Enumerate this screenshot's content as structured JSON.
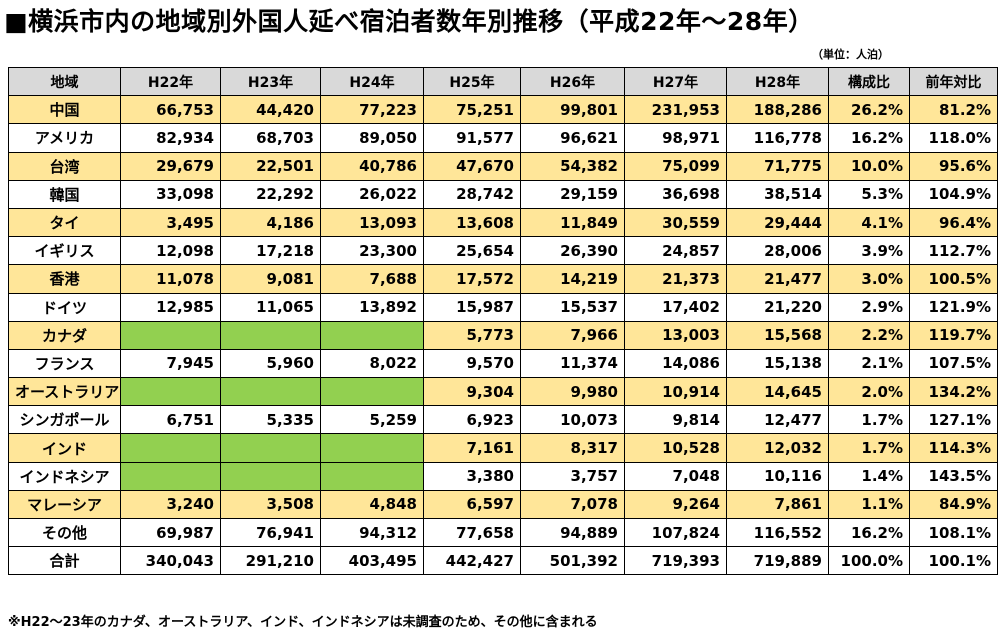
{
  "title": "■横浜市内の地域別外国人延べ宿泊者数年別推移（平成22年～28年）",
  "unit": "（単位：人泊）",
  "headers": [
    "地域",
    "H22年",
    "H23年",
    "H24年",
    "H25年",
    "H26年",
    "H27年",
    "H28年",
    "構成比",
    "前年対比"
  ],
  "rows": [
    {
      "name": "中国",
      "hl": true,
      "vals": [
        "66,753",
        "44,420",
        "77,223",
        "75,251",
        "99,801",
        "231,953",
        "188,286",
        "26.2%",
        "81.2%"
      ]
    },
    {
      "name": "アメリカ",
      "hl": false,
      "vals": [
        "82,934",
        "68,703",
        "89,050",
        "91,577",
        "96,621",
        "98,971",
        "116,778",
        "16.2%",
        "118.0%"
      ]
    },
    {
      "name": "台湾",
      "hl": true,
      "vals": [
        "29,679",
        "22,501",
        "40,786",
        "47,670",
        "54,382",
        "75,099",
        "71,775",
        "10.0%",
        "95.6%"
      ]
    },
    {
      "name": "韓国",
      "hl": false,
      "vals": [
        "33,098",
        "22,292",
        "26,022",
        "28,742",
        "29,159",
        "36,698",
        "38,514",
        "5.3%",
        "104.9%"
      ]
    },
    {
      "name": "タイ",
      "hl": true,
      "vals": [
        "3,495",
        "4,186",
        "13,093",
        "13,608",
        "11,849",
        "30,559",
        "29,444",
        "4.1%",
        "96.4%"
      ]
    },
    {
      "name": "イギリス",
      "hl": false,
      "vals": [
        "12,098",
        "17,218",
        "23,300",
        "25,654",
        "26,390",
        "24,857",
        "28,006",
        "3.9%",
        "112.7%"
      ]
    },
    {
      "name": "香港",
      "hl": true,
      "vals": [
        "11,078",
        "9,081",
        "7,688",
        "17,572",
        "14,219",
        "21,373",
        "21,477",
        "3.0%",
        "100.5%"
      ]
    },
    {
      "name": "ドイツ",
      "hl": false,
      "vals": [
        "12,985",
        "11,065",
        "13,892",
        "15,987",
        "15,537",
        "17,402",
        "21,220",
        "2.9%",
        "121.9%"
      ]
    },
    {
      "name": "カナダ",
      "hl": true,
      "vals": [
        null,
        null,
        null,
        "5,773",
        "7,966",
        "13,003",
        "15,568",
        "2.2%",
        "119.7%"
      ]
    },
    {
      "name": "フランス",
      "hl": false,
      "vals": [
        "7,945",
        "5,960",
        "8,022",
        "9,570",
        "11,374",
        "14,086",
        "15,138",
        "2.1%",
        "107.5%"
      ]
    },
    {
      "name": "オーストラリア",
      "hl": true,
      "vals": [
        null,
        null,
        null,
        "9,304",
        "9,980",
        "10,914",
        "14,645",
        "2.0%",
        "134.2%"
      ]
    },
    {
      "name": "シンガポール",
      "hl": false,
      "vals": [
        "6,751",
        "5,335",
        "5,259",
        "6,923",
        "10,073",
        "9,814",
        "12,477",
        "1.7%",
        "127.1%"
      ]
    },
    {
      "name": "インド",
      "hl": true,
      "vals": [
        null,
        null,
        null,
        "7,161",
        "8,317",
        "10,528",
        "12,032",
        "1.7%",
        "114.3%"
      ]
    },
    {
      "name": "インドネシア",
      "hl": false,
      "vals": [
        null,
        null,
        null,
        "3,380",
        "3,757",
        "7,048",
        "10,116",
        "1.4%",
        "143.5%"
      ]
    },
    {
      "name": "マレーシア",
      "hl": true,
      "vals": [
        "3,240",
        "3,508",
        "4,848",
        "6,597",
        "7,078",
        "9,264",
        "7,861",
        "1.1%",
        "84.9%"
      ]
    },
    {
      "name": "その他",
      "hl": false,
      "vals": [
        "69,987",
        "76,941",
        "94,312",
        "77,658",
        "94,889",
        "107,824",
        "116,552",
        "16.2%",
        "108.1%"
      ]
    },
    {
      "name": "合計",
      "hl": false,
      "vals": [
        "340,043",
        "291,210",
        "403,495",
        "442,427",
        "501,392",
        "719,393",
        "719,889",
        "100.0%",
        "100.1%"
      ]
    }
  ],
  "colors": {
    "highlight": "#ffe699",
    "not_surveyed": "#92d050",
    "header": "#d9d9d9"
  },
  "note": "※H22～23年のカナダ、オーストラリア、インド、インドネシアは未調査のため、その他に含まれる"
}
